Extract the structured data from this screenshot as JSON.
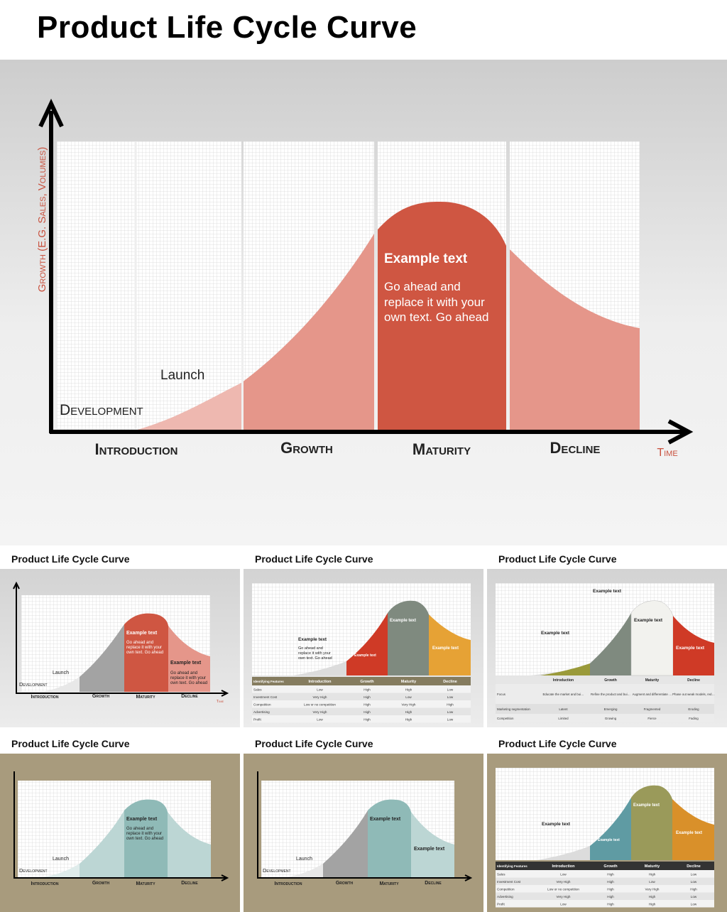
{
  "title": "Product Life Cycle Curve",
  "main": {
    "y_axis_label": "Growth (E.G. Sales, Volumes)",
    "x_axis_label": "Time",
    "stages": [
      "Introduction",
      "Growth",
      "Maturity",
      "Decline"
    ],
    "substages": [
      "Development",
      "Launch"
    ],
    "example_heading": "Example text",
    "example_lines": [
      "Go ahead and",
      "replace it with your",
      "own text. Go ahead"
    ]
  },
  "thumb_titles": [
    "Product Life Cycle Curve",
    "Product Life Cycle Curve",
    "Product Life Cycle Curve",
    "Product Life Cycle Curve",
    "Product Life Cycle Curve",
    "Product Life Cycle Curve"
  ],
  "table_headers": [
    "Identifying Features",
    "Introduction",
    "Growth",
    "Maturity",
    "Decline"
  ],
  "table_rows": [
    [
      "Sales",
      "Low",
      "High",
      "High",
      "Low"
    ],
    [
      "Investment Cost",
      "Very High",
      "High",
      "Low",
      "Low"
    ],
    [
      "Competition",
      "Low or no competition",
      "High",
      "Very High",
      "High"
    ],
    [
      "Advertising",
      "Very High",
      "High",
      "High",
      "Low"
    ],
    [
      "Profit",
      "Low",
      "High",
      "High",
      "Low"
    ]
  ],
  "features_rows": [
    [
      "Focus",
      "Educate the market and build brand identity",
      "Refine the product and build brand preference",
      "Augment and differentiate the product and build brand reputation",
      "Phase out weak models, reduce costs, and milk the brand"
    ],
    [
      "Marketing segmentation",
      "Latent",
      "Emerging",
      "Fragmented",
      "Eroding"
    ],
    [
      "Competition",
      "Limited",
      "Growing",
      "Fierce",
      "Fading"
    ]
  ],
  "colors": {
    "red": "#cf5642",
    "salmon": "#e5968a",
    "pale_salmon": "#eeb8b0",
    "gray_band": "#a3a3a3",
    "teal": "#8fbab7",
    "sage": "#7f8a7f",
    "orange": "#e6a235",
    "olive": "#9a9a3a",
    "khaki": "#a89b7d"
  }
}
